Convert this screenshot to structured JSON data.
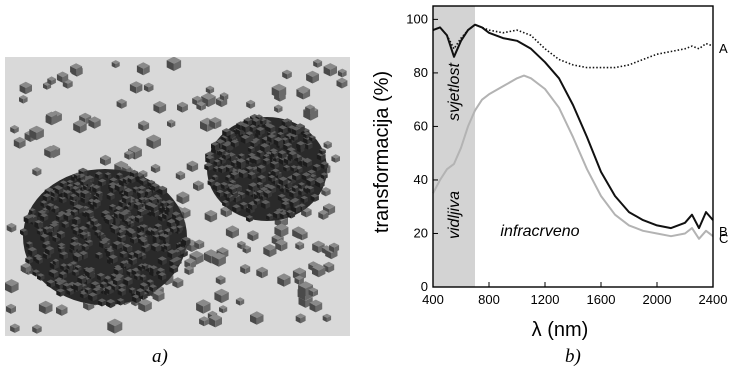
{
  "panels": {
    "a": {
      "caption": "a)"
    },
    "b": {
      "caption": "b)"
    }
  },
  "colors": {
    "region_shade": "#d3d3d3",
    "series_dark": "#111111",
    "series_light": "#b3b3b3",
    "particle_bg": "#d9d9d9",
    "particle_dark": "#2a2a2a",
    "particle_mid": "#6e6e6e"
  },
  "chart_data": {
    "type": "line",
    "title": "",
    "xlabel": "λ (nm)",
    "ylabel": "transformacija (%)",
    "xlim": [
      400,
      2400
    ],
    "ylim": [
      0,
      105
    ],
    "xticks": [
      400,
      800,
      1200,
      1600,
      2000,
      2400
    ],
    "yticks": [
      0,
      20,
      40,
      60,
      80,
      100
    ],
    "grid": false,
    "legend": "none",
    "shaded_region": {
      "from": 400,
      "to": 700
    },
    "region_labels": [
      "svjetlost",
      "vidljiva",
      "infracrveno"
    ],
    "series": [
      {
        "name": "A",
        "style": "dotted",
        "color": "#111111",
        "x": [
          400,
          450,
          500,
          550,
          600,
          650,
          700,
          750,
          800,
          900,
          1000,
          1100,
          1200,
          1300,
          1400,
          1500,
          1600,
          1700,
          1800,
          1900,
          2000,
          2100,
          2200,
          2250,
          2300,
          2350,
          2400
        ],
        "y": [
          96,
          97,
          94,
          89,
          93,
          96,
          98,
          97,
          96,
          95,
          96,
          94,
          89,
          85,
          83,
          82,
          82,
          82,
          83,
          85,
          87,
          88,
          89,
          90,
          89,
          91,
          90
        ]
      },
      {
        "name": "B",
        "style": "solid",
        "color": "#111111",
        "x": [
          400,
          450,
          500,
          550,
          600,
          650,
          700,
          750,
          800,
          900,
          1000,
          1100,
          1200,
          1300,
          1400,
          1500,
          1600,
          1700,
          1800,
          1900,
          2000,
          2100,
          2200,
          2250,
          2300,
          2350,
          2400
        ],
        "y": [
          96,
          97,
          94,
          86,
          92,
          96,
          98,
          97,
          95,
          93,
          92,
          89,
          84,
          78,
          68,
          56,
          43,
          34,
          28,
          25,
          23,
          22,
          24,
          27,
          22,
          28,
          25
        ]
      },
      {
        "name": "C",
        "style": "solid",
        "color": "#b3b3b3",
        "x": [
          400,
          450,
          500,
          550,
          600,
          650,
          700,
          750,
          800,
          900,
          1000,
          1050,
          1100,
          1200,
          1300,
          1400,
          1500,
          1600,
          1700,
          1800,
          1900,
          2000,
          2100,
          2200,
          2250,
          2300,
          2350,
          2400
        ],
        "y": [
          35,
          40,
          44,
          46,
          52,
          60,
          66,
          70,
          72,
          75,
          78,
          79,
          78,
          74,
          67,
          56,
          44,
          34,
          27,
          23,
          21,
          20,
          19,
          20,
          22,
          18,
          21,
          19
        ]
      }
    ]
  }
}
